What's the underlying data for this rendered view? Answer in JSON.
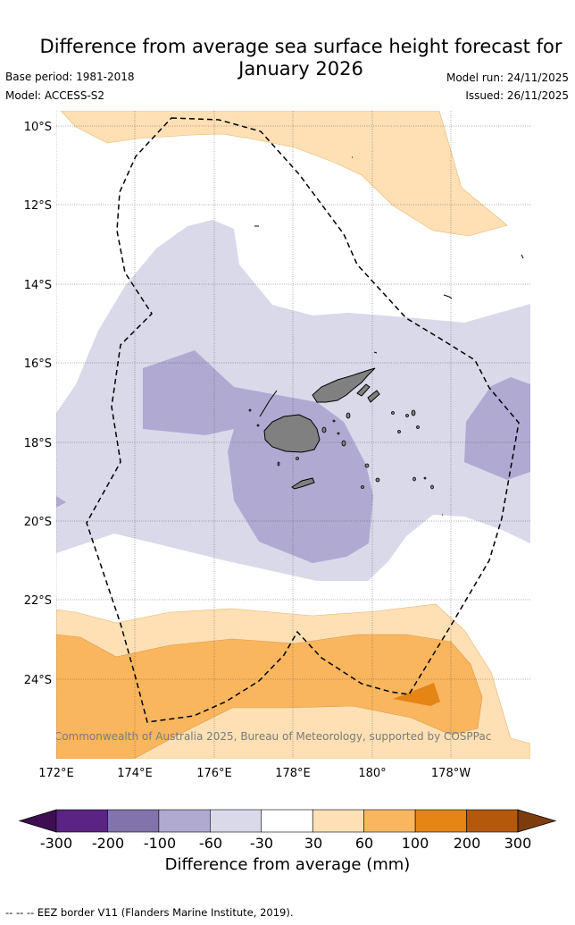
{
  "header": {
    "title_line1": "Difference from average sea surface height forecast for",
    "title_line2": "January 2026",
    "base_period": "Base period: 1981-2018",
    "model": "Model: ACCESS-S2",
    "model_run": "Model run: 24/11/2025",
    "issued": "Issued: 26/11/2025"
  },
  "map": {
    "lat_labels": [
      "10°S",
      "12°S",
      "14°S",
      "16°S",
      "18°S",
      "20°S",
      "22°S",
      "24°S"
    ],
    "lon_labels": [
      "172°E",
      "174°E",
      "176°E",
      "178°E",
      "180°",
      "178°W"
    ],
    "copyright": "© Commonwealth of Australia 2025, Bureau of Meteorology, supported by COSPPac",
    "land_color": "#808080"
  },
  "colorbar": {
    "title": "Difference from average (mm)",
    "ticks": [
      "-300",
      "-200",
      "-100",
      "-60",
      "-30",
      "30",
      "60",
      "100",
      "200",
      "300"
    ],
    "colors": [
      "#3d0f52",
      "#5b2383",
      "#8273ad",
      "#b0a9d1",
      "#d9d9ea",
      "#ffffff",
      "#fee0b4",
      "#f9b65e",
      "#e48516",
      "#b4590b",
      "#7d3c0c"
    ]
  },
  "footnote": "--  --  -- EEZ border V11 (Flanders Marine Institute, 2019)."
}
